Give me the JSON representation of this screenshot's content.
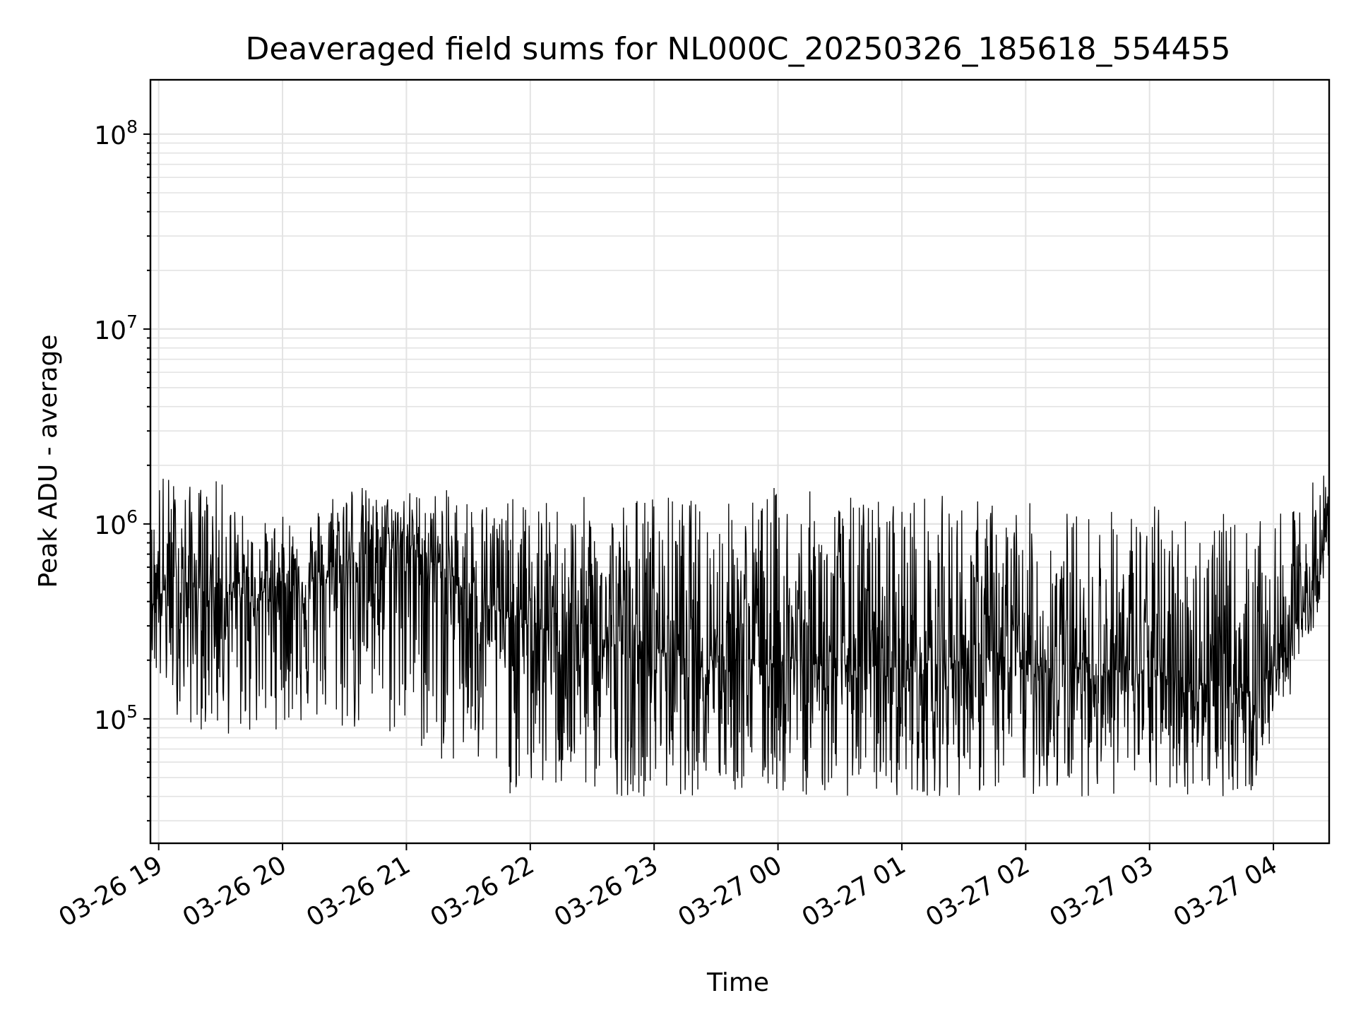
{
  "chart_data": {
    "type": "line",
    "title": "Deaveraged field sums for NL000C_20250326_185618_554455",
    "xlabel": "Time",
    "ylabel": "Peak ADU - average",
    "yscale": "log",
    "ylim": [
      23000,
      190000000
    ],
    "xlim": [
      "2025-03-26 18:56",
      "2025-03-27 04:27"
    ],
    "x_tick_labels": [
      "03-26 19",
      "03-26 20",
      "03-26 21",
      "03-26 22",
      "03-26 23",
      "03-27 00",
      "03-27 01",
      "03-27 02",
      "03-27 03",
      "03-27 04"
    ],
    "y_tick_labels": [
      {
        "base": "10",
        "exp": "5"
      },
      {
        "base": "10",
        "exp": "6"
      },
      {
        "base": "10",
        "exp": "7"
      },
      {
        "base": "10",
        "exp": "8"
      }
    ],
    "grid": true,
    "series": [
      {
        "color": "#000000",
        "x": [
          "2025-03-26 18:56",
          "2025-03-26 19:00",
          "2025-03-26 19:15",
          "2025-03-26 19:30",
          "2025-03-26 19:45",
          "2025-03-26 20:00",
          "2025-03-26 20:15",
          "2025-03-26 20:30",
          "2025-03-26 20:45",
          "2025-03-26 21:00",
          "2025-03-26 21:15",
          "2025-03-26 21:30",
          "2025-03-26 21:45",
          "2025-03-26 22:00",
          "2025-03-26 22:30",
          "2025-03-26 23:00",
          "2025-03-26 23:30",
          "2025-03-27 00:00",
          "2025-03-27 00:30",
          "2025-03-27 01:00",
          "2025-03-27 01:30",
          "2025-03-27 02:00",
          "2025-03-27 02:30",
          "2025-03-27 03:00",
          "2025-03-27 03:30",
          "2025-03-27 03:50",
          "2025-03-27 04:00",
          "2025-03-27 04:10",
          "2025-03-27 04:20",
          "2025-03-27 04:27"
        ],
        "y": [
          400000,
          450000,
          480000,
          450000,
          420000,
          500000,
          480000,
          600000,
          750000,
          800000,
          600000,
          450000,
          350000,
          300000,
          250000,
          230000,
          220000,
          200000,
          190000,
          180000,
          200000,
          190000,
          180000,
          170000,
          150000,
          140000,
          180000,
          300000,
          450000,
          950000
        ],
        "y_min": [
          200000,
          130000,
          90000,
          80000,
          80000,
          90000,
          90000,
          80000,
          80000,
          70000,
          60000,
          50000,
          40000,
          40000,
          40000,
          40000,
          40000,
          40000,
          40000,
          40000,
          40000,
          40000,
          40000,
          40000,
          40000,
          40000,
          80000,
          150000,
          300000,
          700000
        ],
        "y_max": [
          1000000,
          2000000,
          1600000,
          1700000,
          1000000,
          1100000,
          1200000,
          1900000,
          1400000,
          1500000,
          1500000,
          1500000,
          1400000,
          1300000,
          1400000,
          1500000,
          1300000,
          1600000,
          1400000,
          1500000,
          1400000,
          1300000,
          1200000,
          1300000,
          1200000,
          1000000,
          1100000,
          1200000,
          1800000,
          2000000
        ]
      }
    ]
  }
}
